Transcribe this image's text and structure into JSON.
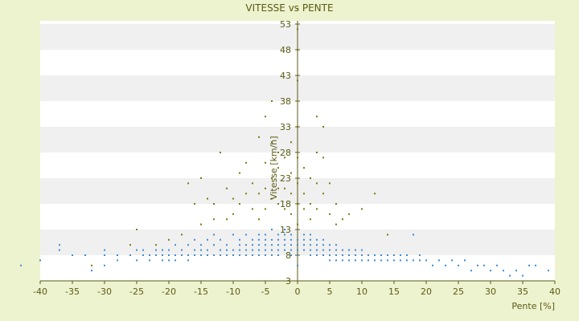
{
  "chart_data": {
    "type": "scatter",
    "title": "VITESSE vs PENTE",
    "xlabel": "Pente [%]",
    "ylabel": "Vitesse [km/h]",
    "xlim": [
      -40,
      40
    ],
    "ylim": [
      3,
      58
    ],
    "x_ticks": [
      "-40",
      "-35",
      "-30",
      "-25",
      "-20",
      "-15",
      "-10",
      "-5",
      "0",
      "5",
      "10",
      "15",
      "20",
      "25",
      "30",
      "35",
      "40"
    ],
    "y_ticks": [
      "3",
      "8",
      "13",
      "18",
      "23",
      "28",
      "33",
      "38",
      "43",
      "48",
      "53"
    ],
    "grid": "horizontal alternating bands",
    "legend": "none",
    "colors": {
      "background": "#eef3cf",
      "plot_band_light": "#ffffff",
      "plot_band_dark": "#f0f0f0",
      "axis": "#5a5a14",
      "series_main": "#3b8bd6",
      "series_outliers": "#7a7a10"
    },
    "series": [
      {
        "color": "#3b8bd6",
        "points": [
          [
            -43,
            6
          ],
          [
            -40,
            7
          ],
          [
            -37,
            9
          ],
          [
            -37,
            10
          ],
          [
            -35,
            8
          ],
          [
            -33,
            8
          ],
          [
            -32,
            5
          ],
          [
            -30,
            8
          ],
          [
            -30,
            6
          ],
          [
            -30,
            9
          ],
          [
            -28,
            8
          ],
          [
            -28,
            7
          ],
          [
            -26,
            8
          ],
          [
            -25,
            9
          ],
          [
            -25,
            7
          ],
          [
            -24,
            8
          ],
          [
            -24,
            9
          ],
          [
            -23,
            7
          ],
          [
            -23,
            8
          ],
          [
            -22,
            9
          ],
          [
            -22,
            8
          ],
          [
            -21,
            7
          ],
          [
            -21,
            8
          ],
          [
            -21,
            9
          ],
          [
            -20,
            9
          ],
          [
            -20,
            8
          ],
          [
            -20,
            7
          ],
          [
            -19,
            10
          ],
          [
            -19,
            8
          ],
          [
            -19,
            7
          ],
          [
            -18,
            8
          ],
          [
            -18,
            9
          ],
          [
            -17,
            10
          ],
          [
            -17,
            8
          ],
          [
            -17,
            7
          ],
          [
            -16,
            9
          ],
          [
            -16,
            8
          ],
          [
            -16,
            11
          ],
          [
            -15,
            8
          ],
          [
            -15,
            9
          ],
          [
            -15,
            10
          ],
          [
            -14,
            8
          ],
          [
            -14,
            11
          ],
          [
            -14,
            9
          ],
          [
            -13,
            10
          ],
          [
            -13,
            8
          ],
          [
            -13,
            12
          ],
          [
            -12,
            9
          ],
          [
            -12,
            8
          ],
          [
            -12,
            11
          ],
          [
            -11,
            10
          ],
          [
            -11,
            8
          ],
          [
            -11,
            9
          ],
          [
            -10,
            12
          ],
          [
            -10,
            9
          ],
          [
            -10,
            8
          ],
          [
            -9,
            10
          ],
          [
            -9,
            11
          ],
          [
            -9,
            8
          ],
          [
            -9,
            9
          ],
          [
            -8,
            12
          ],
          [
            -8,
            9
          ],
          [
            -8,
            10
          ],
          [
            -8,
            8
          ],
          [
            -7,
            11
          ],
          [
            -7,
            9
          ],
          [
            -7,
            10
          ],
          [
            -7,
            8
          ],
          [
            -6,
            12
          ],
          [
            -6,
            10
          ],
          [
            -6,
            9
          ],
          [
            -6,
            11
          ],
          [
            -6,
            8
          ],
          [
            -5,
            12
          ],
          [
            -5,
            10
          ],
          [
            -5,
            9
          ],
          [
            -5,
            11
          ],
          [
            -5,
            8
          ],
          [
            -4,
            13
          ],
          [
            -4,
            10
          ],
          [
            -4,
            11
          ],
          [
            -4,
            9
          ],
          [
            -4,
            8
          ],
          [
            -3,
            12
          ],
          [
            -3,
            10
          ],
          [
            -3,
            11
          ],
          [
            -3,
            9
          ],
          [
            -3,
            8
          ],
          [
            -2,
            12
          ],
          [
            -2,
            10
          ],
          [
            -2,
            11
          ],
          [
            -2,
            9
          ],
          [
            -2,
            13
          ],
          [
            -1,
            10
          ],
          [
            -1,
            9
          ],
          [
            -1,
            11
          ],
          [
            -1,
            8
          ],
          [
            -1,
            12
          ],
          [
            0,
            10
          ],
          [
            0,
            9
          ],
          [
            0,
            11
          ],
          [
            0,
            8
          ],
          [
            0,
            6
          ],
          [
            1,
            10
          ],
          [
            1,
            11
          ],
          [
            1,
            9
          ],
          [
            1,
            12
          ],
          [
            2,
            10
          ],
          [
            2,
            9
          ],
          [
            2,
            11
          ],
          [
            2,
            8
          ],
          [
            2,
            12
          ],
          [
            3,
            10
          ],
          [
            3,
            9
          ],
          [
            3,
            11
          ],
          [
            3,
            8
          ],
          [
            4,
            10
          ],
          [
            4,
            9
          ],
          [
            4,
            8
          ],
          [
            4,
            11
          ],
          [
            5,
            9
          ],
          [
            5,
            8
          ],
          [
            5,
            10
          ],
          [
            5,
            7
          ],
          [
            6,
            9
          ],
          [
            6,
            8
          ],
          [
            6,
            7
          ],
          [
            6,
            10
          ],
          [
            7,
            8
          ],
          [
            7,
            9
          ],
          [
            7,
            7
          ],
          [
            7,
            8
          ],
          [
            8,
            9
          ],
          [
            8,
            8
          ],
          [
            8,
            7
          ],
          [
            9,
            8
          ],
          [
            9,
            7
          ],
          [
            9,
            9
          ],
          [
            10,
            8
          ],
          [
            10,
            7
          ],
          [
            10,
            9
          ],
          [
            11,
            8
          ],
          [
            11,
            7
          ],
          [
            12,
            8
          ],
          [
            12,
            7
          ],
          [
            13,
            8
          ],
          [
            13,
            7
          ],
          [
            14,
            8
          ],
          [
            14,
            7
          ],
          [
            15,
            8
          ],
          [
            15,
            7
          ],
          [
            16,
            8
          ],
          [
            16,
            7
          ],
          [
            17,
            7
          ],
          [
            17,
            8
          ],
          [
            18,
            7
          ],
          [
            18,
            12
          ],
          [
            19,
            7
          ],
          [
            19,
            8
          ],
          [
            20,
            7
          ],
          [
            21,
            6
          ],
          [
            22,
            7
          ],
          [
            23,
            6
          ],
          [
            24,
            7
          ],
          [
            25,
            6
          ],
          [
            26,
            7
          ],
          [
            27,
            5
          ],
          [
            28,
            6
          ],
          [
            29,
            6
          ],
          [
            30,
            5
          ],
          [
            31,
            6
          ],
          [
            32,
            5
          ],
          [
            33,
            4
          ],
          [
            34,
            5
          ],
          [
            35,
            4
          ],
          [
            36,
            6
          ],
          [
            37,
            6
          ],
          [
            39,
            5
          ]
        ]
      },
      {
        "color": "#7a7a10",
        "points": [
          [
            -17,
            22
          ],
          [
            -16,
            18
          ],
          [
            -15,
            23
          ],
          [
            -14,
            19
          ],
          [
            -13,
            18
          ],
          [
            -12,
            28
          ],
          [
            -11,
            21
          ],
          [
            -11,
            15
          ],
          [
            -10,
            19
          ],
          [
            -10,
            16
          ],
          [
            -9,
            24
          ],
          [
            -9,
            18
          ],
          [
            -8,
            20
          ],
          [
            -8,
            26
          ],
          [
            -7,
            22
          ],
          [
            -7,
            17
          ],
          [
            -6,
            31
          ],
          [
            -6,
            20
          ],
          [
            -6,
            15
          ],
          [
            -5,
            35
          ],
          [
            -5,
            21
          ],
          [
            -5,
            26
          ],
          [
            -5,
            17
          ],
          [
            -4,
            30
          ],
          [
            -4,
            23
          ],
          [
            -4,
            19
          ],
          [
            -4,
            38
          ],
          [
            -3,
            25
          ],
          [
            -3,
            21
          ],
          [
            -3,
            18
          ],
          [
            -3,
            28
          ],
          [
            -2,
            21
          ],
          [
            -2,
            17
          ],
          [
            -2,
            27
          ],
          [
            -1,
            20
          ],
          [
            -1,
            16
          ],
          [
            -1,
            24
          ],
          [
            -1,
            30
          ],
          [
            0,
            56
          ],
          [
            0,
            48
          ],
          [
            0,
            52
          ],
          [
            0,
            42
          ],
          [
            0,
            33
          ],
          [
            0,
            27
          ],
          [
            0,
            22
          ],
          [
            0,
            18
          ],
          [
            0,
            14
          ],
          [
            1,
            25
          ],
          [
            1,
            20
          ],
          [
            1,
            17
          ],
          [
            2,
            23
          ],
          [
            2,
            18
          ],
          [
            2,
            15
          ],
          [
            3,
            35
          ],
          [
            3,
            28
          ],
          [
            3,
            22
          ],
          [
            3,
            17
          ],
          [
            4,
            33
          ],
          [
            4,
            27
          ],
          [
            4,
            20
          ],
          [
            5,
            22
          ],
          [
            5,
            16
          ],
          [
            6,
            18
          ],
          [
            6,
            14
          ],
          [
            7,
            15
          ],
          [
            8,
            16
          ],
          [
            10,
            17
          ],
          [
            12,
            20
          ],
          [
            14,
            12
          ],
          [
            -18,
            12
          ],
          [
            -20,
            11
          ],
          [
            -22,
            10
          ],
          [
            -15,
            14
          ],
          [
            -13,
            15
          ],
          [
            -25,
            13
          ],
          [
            -32,
            6
          ],
          [
            -26,
            10
          ]
        ]
      }
    ]
  }
}
